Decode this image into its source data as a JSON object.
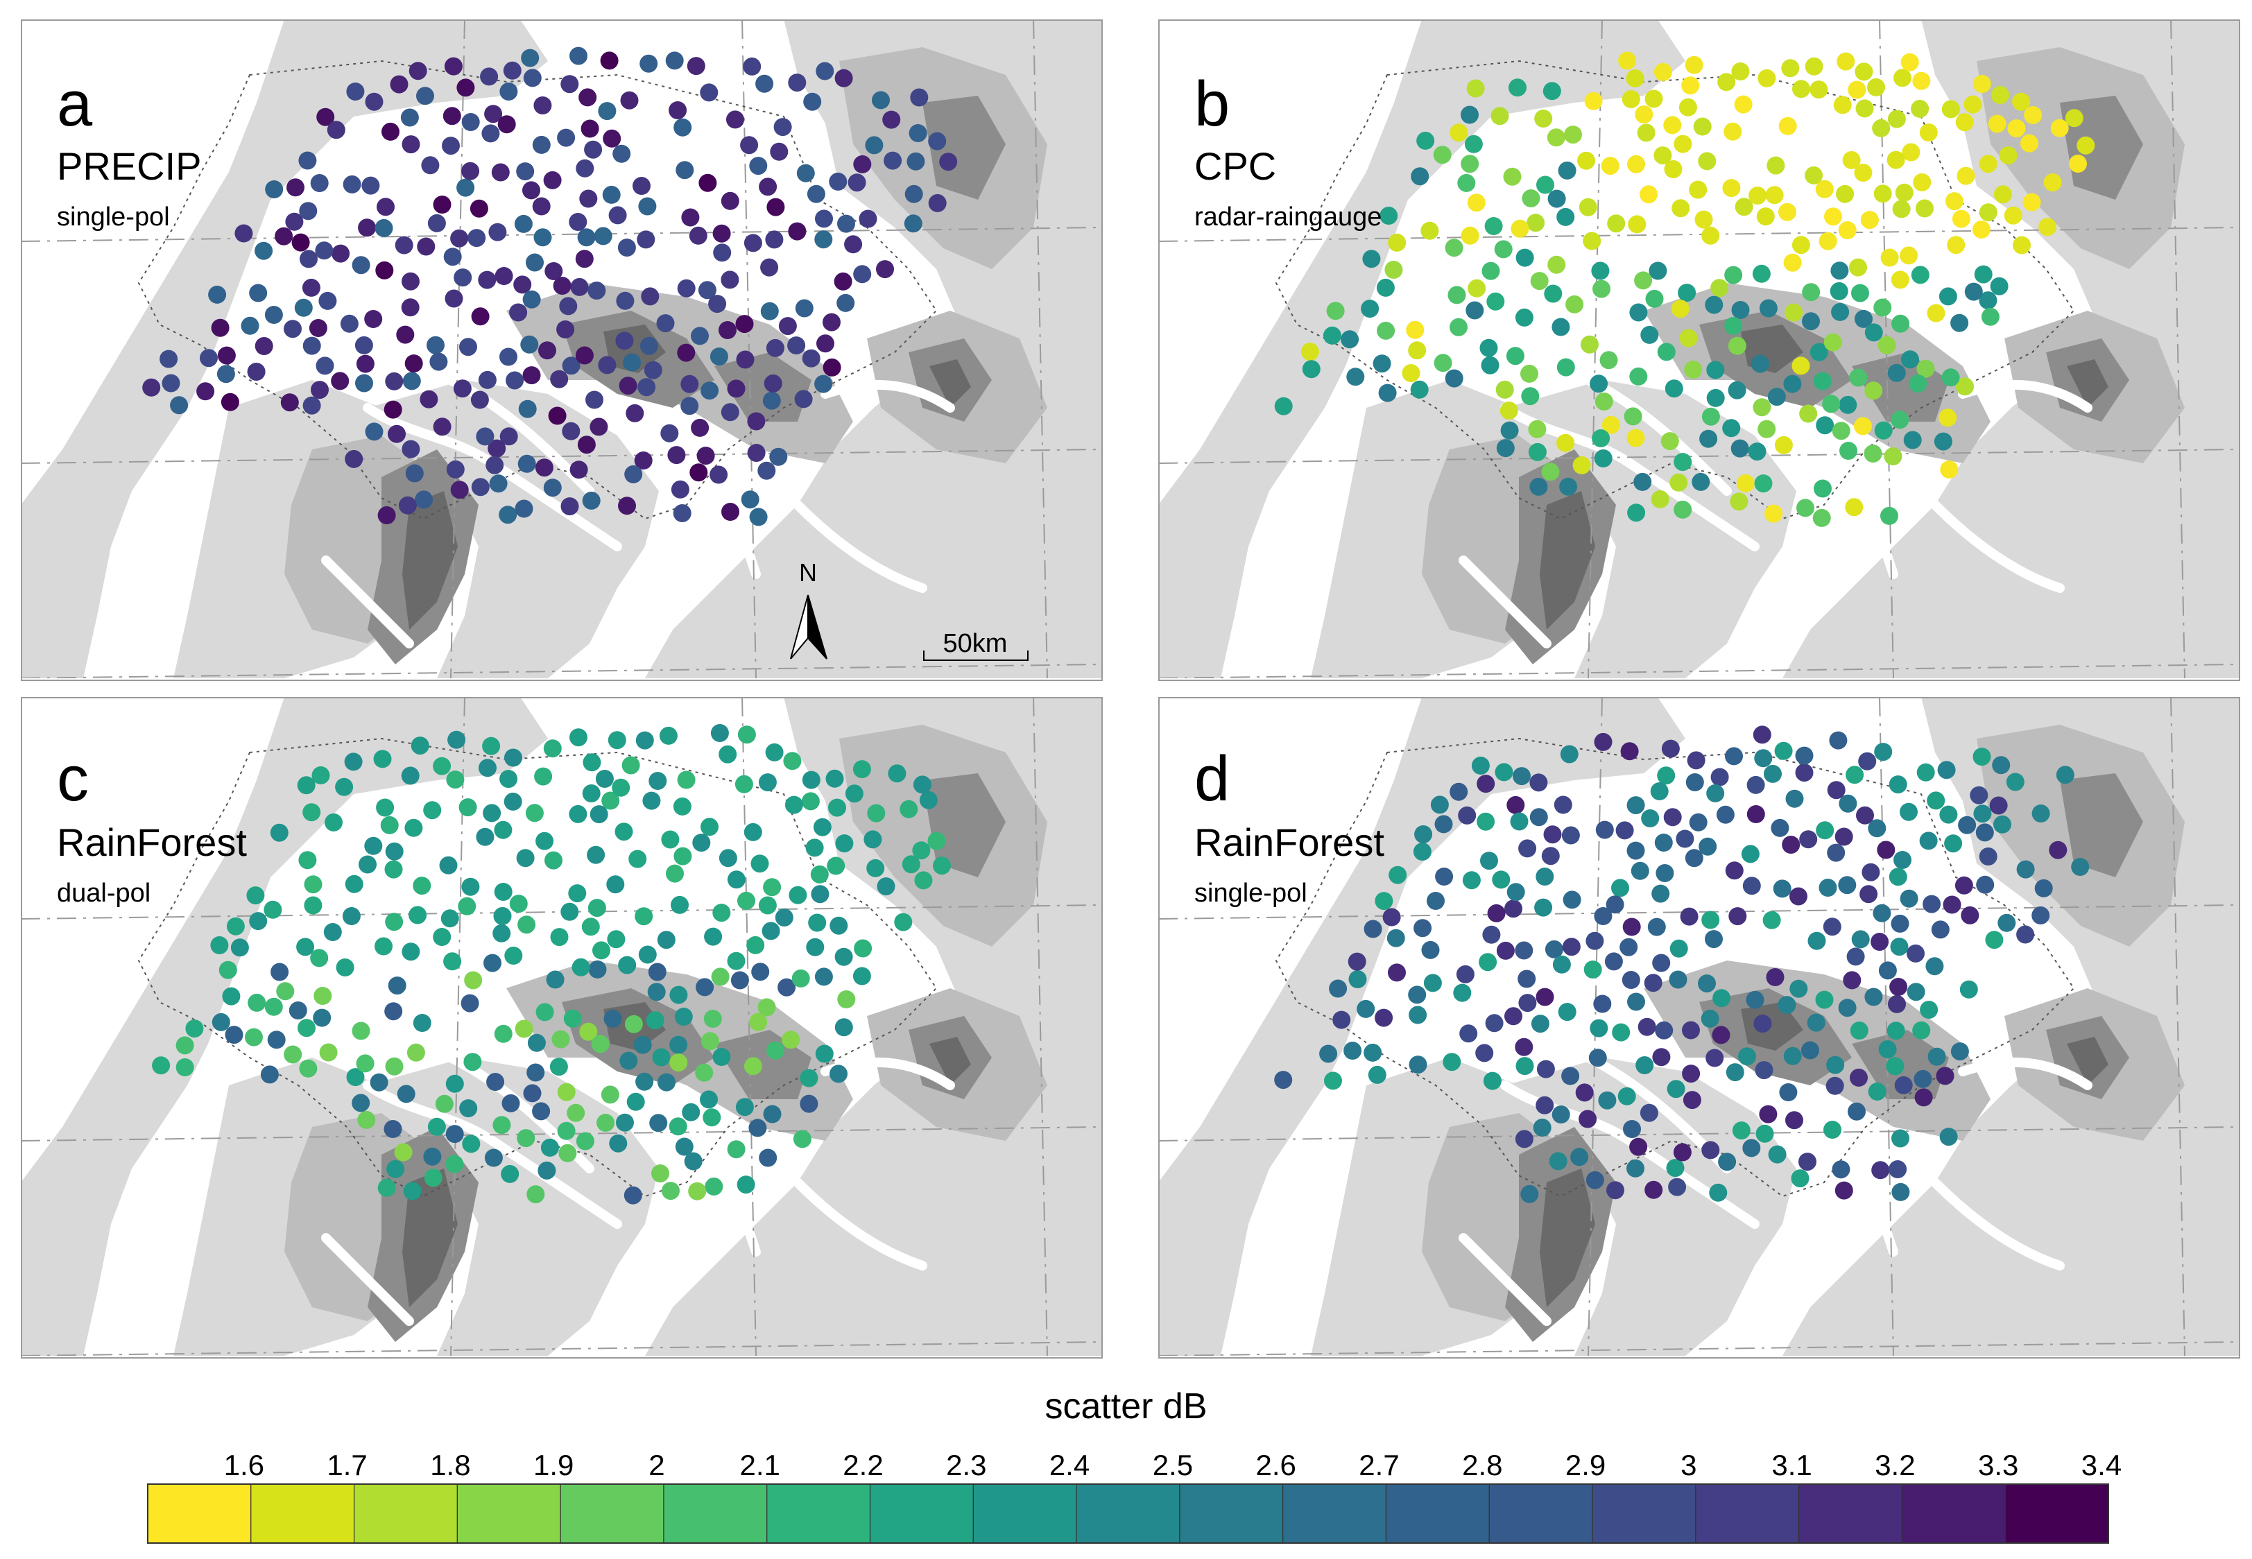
{
  "panels": [
    {
      "letter": "a",
      "title": "PRECIP",
      "subtitle": "single-pol",
      "seed": 11,
      "palette_bias": [
        2.75,
        3.45
      ],
      "region": "a"
    },
    {
      "letter": "b",
      "title": "CPC",
      "subtitle": "radar-raingauge",
      "seed": 23,
      "palette_bias": [
        1.55,
        2.7
      ],
      "region": "b"
    },
    {
      "letter": "c",
      "title": "RainForest",
      "subtitle": "dual-pol",
      "seed": 37,
      "palette_bias": [
        1.85,
        2.95
      ],
      "region": "c"
    },
    {
      "letter": "d",
      "title": "RainForest",
      "subtitle": "single-pol",
      "seed": 53,
      "palette_bias": [
        2.25,
        3.35
      ],
      "region": "d"
    }
  ],
  "north_arrow": {
    "label": "N"
  },
  "scale_bar": {
    "label": "50km"
  },
  "legend": {
    "title": "scatter dB",
    "ticks": [
      "1.6",
      "1.7",
      "1.8",
      "1.9",
      "2",
      "2.1",
      "2.2",
      "2.3",
      "2.4",
      "2.5",
      "2.6",
      "2.7",
      "2.8",
      "2.9",
      "3",
      "3.1",
      "3.2",
      "3.3",
      "3.4"
    ],
    "colors": [
      "#fde725",
      "#d8e219",
      "#b0dd2f",
      "#89d548",
      "#65cb5e",
      "#46c06f",
      "#2eb37c",
      "#21a585",
      "#1f978b",
      "#23898e",
      "#287c8e",
      "#2c6f8e",
      "#31628d",
      "#375a8c",
      "#3e4c8a",
      "#433e85",
      "#472d7b",
      "#481c6e",
      "#440154"
    ],
    "range": [
      1.55,
      3.45
    ]
  },
  "colors": {
    "terrain_light": "#d9d9d9",
    "terrain_mid": "#bdbdbd",
    "terrain_dark": "#8c8c8c",
    "terrain_darkest": "#6a6a6a",
    "frame": "#9a9a9a"
  }
}
